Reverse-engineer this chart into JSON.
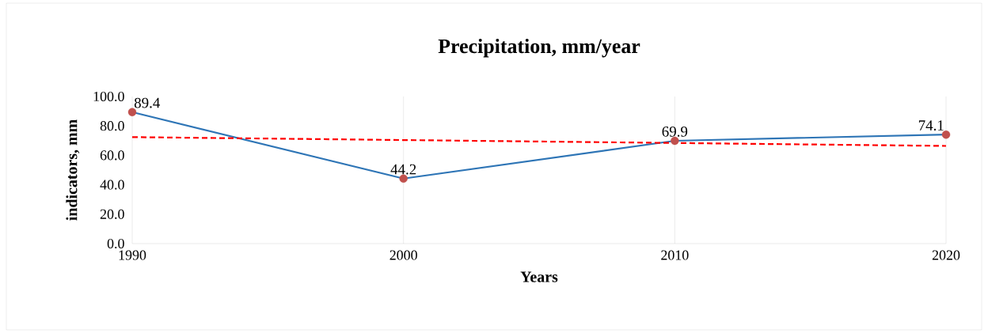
{
  "chart_data": {
    "type": "line",
    "title": "Precipitation, mm/year",
    "xlabel": "Years",
    "ylabel": "indicators, mm",
    "x": [
      1990,
      2000,
      2010,
      2020
    ],
    "series": [
      {
        "color": "#2e75b6",
        "colors": [
          "#c0504d",
          "#c0504d",
          "#c0504d",
          "#c0504d"
        ],
        "marker": "circle",
        "values": [
          89.4,
          44.2,
          69.9,
          74.1
        ],
        "value_labels": [
          "89.4",
          "44.2",
          "69.9",
          "74.1"
        ]
      },
      {
        "type": "line",
        "x": [
          1990,
          2020
        ],
        "values": [
          72.4,
          66.4
        ],
        "color": "#ff0000",
        "line_style": "dashed",
        "marker": "none"
      }
    ],
    "xlim": [
      1990,
      2020
    ],
    "ylim": [
      0,
      100
    ],
    "xticks": [
      1990,
      2000,
      2010,
      2020
    ],
    "yticks": [
      {
        "value": 0,
        "label": "0.0"
      },
      {
        "value": 20,
        "label": "20.0"
      },
      {
        "value": 40,
        "label": "40.0"
      },
      {
        "value": 60,
        "label": "60.0"
      },
      {
        "value": 80,
        "label": "80.0"
      },
      {
        "value": 100,
        "label": "100.0"
      }
    ],
    "grid": "x"
  }
}
